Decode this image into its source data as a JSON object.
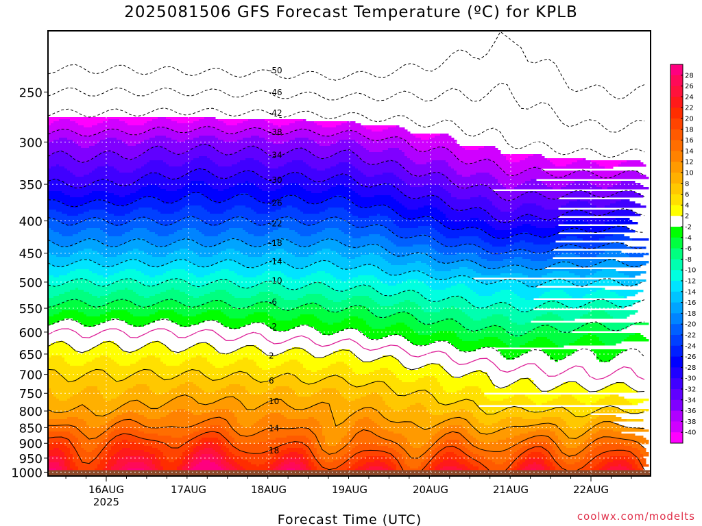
{
  "title": "2025081506 GFS Forecast Temperature (ºC) for KPLB",
  "credit": "coolwx.com/modelts",
  "chart_data": {
    "type": "heatmap",
    "title": "2025081506 GFS Forecast Temperature (ºC) for KPLB",
    "xlabel": "Forecast Time (UTC)",
    "ylabel": "",
    "x_ticks": [
      "16AUG",
      "17AUG",
      "18AUG",
      "19AUG",
      "20AUG",
      "21AUG",
      "22AUG"
    ],
    "x_tick_year": "2025",
    "x_range": [
      "2025-08-15 06Z",
      "2025-08-22 18Z"
    ],
    "y_ticks": [
      250,
      300,
      350,
      400,
      450,
      500,
      550,
      600,
      650,
      700,
      750,
      800,
      850,
      900,
      950,
      1000
    ],
    "y_range": [
      200,
      1014
    ],
    "y_scale": "log",
    "y_inverted": true,
    "grid": true,
    "colorbar_labels": [
      28,
      26,
      24,
      22,
      20,
      18,
      16,
      14,
      12,
      10,
      8,
      6,
      4,
      2,
      -2,
      -4,
      -6,
      -8,
      -10,
      -12,
      -14,
      -16,
      -18,
      -20,
      -22,
      -24,
      -26,
      -28,
      -30,
      -32,
      -34,
      -36,
      -38,
      -40
    ],
    "colorbar_colors": [
      "#ff007f",
      "#ff0a58",
      "#ff123c",
      "#ff1a1a",
      "#ff2d00",
      "#ff4400",
      "#ff5a00",
      "#ff6e00",
      "#ff8200",
      "#ff9a00",
      "#ffb000",
      "#ffc800",
      "#ffe000",
      "#ffff00",
      "#ffffff",
      "#00ff00",
      "#00ff40",
      "#00ff80",
      "#00ffb0",
      "#00ffe0",
      "#00e4ff",
      "#00c4ff",
      "#00a4ff",
      "#0084ff",
      "#0060ff",
      "#0040ff",
      "#0020ff",
      "#0000ff",
      "#2000ff",
      "#4000ff",
      "#6000ff",
      "#8000ff",
      "#b000ff",
      "#d000ff",
      "#ff00ff"
    ],
    "contour_levels": [
      -50,
      -46,
      -42,
      -38,
      -34,
      -30,
      -26,
      -22,
      -18,
      -14,
      -10,
      -6,
      -2,
      2,
      6,
      10,
      14,
      18
    ],
    "contour_label_time": "18AUG",
    "freezing_line_color": "#dd2299",
    "ground_color": "#8b4a2a",
    "profiles": [
      {
        "time": "16AUG",
        "levels": [
          {
            "p": 250,
            "t": -46
          },
          {
            "p": 300,
            "t": -36
          },
          {
            "p": 350,
            "t": -30
          },
          {
            "p": 400,
            "t": -22
          },
          {
            "p": 450,
            "t": -16
          },
          {
            "p": 500,
            "t": -10
          },
          {
            "p": 550,
            "t": -5
          },
          {
            "p": 600,
            "t": 0
          },
          {
            "p": 650,
            "t": 3
          },
          {
            "p": 700,
            "t": 6
          },
          {
            "p": 750,
            "t": 8
          },
          {
            "p": 800,
            "t": 10
          },
          {
            "p": 850,
            "t": 14
          },
          {
            "p": 900,
            "t": 18
          },
          {
            "p": 950,
            "t": 21
          }
        ]
      },
      {
        "time": "17AUG",
        "levels": [
          {
            "p": 250,
            "t": -46
          },
          {
            "p": 300,
            "t": -35
          },
          {
            "p": 350,
            "t": -28
          },
          {
            "p": 400,
            "t": -22
          },
          {
            "p": 450,
            "t": -16
          },
          {
            "p": 500,
            "t": -10
          },
          {
            "p": 550,
            "t": -5
          },
          {
            "p": 600,
            "t": 0
          },
          {
            "p": 650,
            "t": 3
          },
          {
            "p": 700,
            "t": 6
          },
          {
            "p": 750,
            "t": 9
          },
          {
            "p": 800,
            "t": 12
          },
          {
            "p": 850,
            "t": 15
          },
          {
            "p": 900,
            "t": 20
          },
          {
            "p": 950,
            "t": 24
          }
        ]
      },
      {
        "time": "19AUG",
        "levels": [
          {
            "p": 250,
            "t": -47
          },
          {
            "p": 300,
            "t": -36
          },
          {
            "p": 350,
            "t": -29
          },
          {
            "p": 400,
            "t": -22
          },
          {
            "p": 450,
            "t": -16
          },
          {
            "p": 500,
            "t": -11
          },
          {
            "p": 550,
            "t": -6
          },
          {
            "p": 600,
            "t": -2
          },
          {
            "p": 650,
            "t": 2
          },
          {
            "p": 700,
            "t": 5
          },
          {
            "p": 750,
            "t": 8
          },
          {
            "p": 800,
            "t": 10
          },
          {
            "p": 850,
            "t": 12
          },
          {
            "p": 900,
            "t": 14
          },
          {
            "p": 950,
            "t": 18
          }
        ]
      },
      {
        "time": "21AUG",
        "levels": [
          {
            "p": 250,
            "t": -46
          },
          {
            "p": 300,
            "t": -42
          },
          {
            "p": 350,
            "t": -36
          },
          {
            "p": 400,
            "t": -30
          },
          {
            "p": 450,
            "t": -22
          },
          {
            "p": 500,
            "t": -14
          },
          {
            "p": 550,
            "t": -10
          },
          {
            "p": 600,
            "t": -6
          },
          {
            "p": 650,
            "t": -2
          },
          {
            "p": 700,
            "t": 1
          },
          {
            "p": 750,
            "t": 3
          },
          {
            "p": 800,
            "t": 6
          },
          {
            "p": 850,
            "t": 10
          },
          {
            "p": 900,
            "t": 14
          },
          {
            "p": 950,
            "t": 18
          }
        ]
      },
      {
        "time": "22AUG",
        "levels": [
          {
            "p": 250,
            "t": -50
          },
          {
            "p": 300,
            "t": -44
          },
          {
            "p": 350,
            "t": -36
          },
          {
            "p": 400,
            "t": -28
          },
          {
            "p": 450,
            "t": -20
          },
          {
            "p": 500,
            "t": -14
          },
          {
            "p": 550,
            "t": -9
          },
          {
            "p": 600,
            "t": -5
          },
          {
            "p": 650,
            "t": -2
          },
          {
            "p": 700,
            "t": 0
          },
          {
            "p": 750,
            "t": 3
          },
          {
            "p": 800,
            "t": 6
          },
          {
            "p": 850,
            "t": 10
          },
          {
            "p": 900,
            "t": 14
          },
          {
            "p": 950,
            "t": 18
          }
        ]
      }
    ]
  }
}
